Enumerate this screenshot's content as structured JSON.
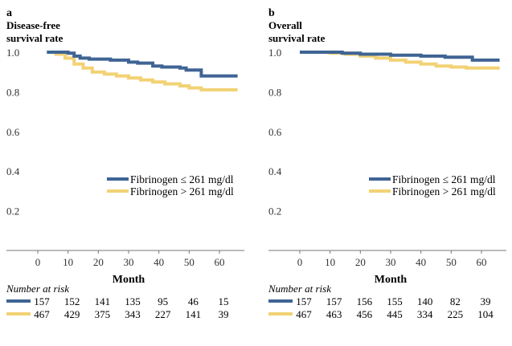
{
  "chart_data": [
    {
      "type": "line",
      "panel_letter": "a",
      "ylabel_line1": "Disease-free",
      "ylabel_line2": "survival rate",
      "xlabel": "Month",
      "xlim": [
        -12,
        68
      ],
      "ylim": [
        0,
        1.0
      ],
      "xticks": [
        "0",
        "10",
        "20",
        "30",
        "40",
        "50",
        "60"
      ],
      "xtick_values": [
        0,
        10,
        20,
        30,
        40,
        50,
        60
      ],
      "yticks": [
        "1.0",
        "0.8",
        "0.6",
        "0.4",
        "0.2"
      ],
      "ytick_values": [
        1.0,
        0.8,
        0.6,
        0.4,
        0.2
      ],
      "grid": false,
      "legend_position": "right",
      "series": [
        {
          "name": "Fibrinogen ≤ 261 mg/dl",
          "color": "#3f6494",
          "points": [
            [
              3,
              1.0
            ],
            [
              10,
              0.995
            ],
            [
              12,
              0.98
            ],
            [
              14,
              0.97
            ],
            [
              17,
              0.965
            ],
            [
              24,
              0.96
            ],
            [
              30,
              0.95
            ],
            [
              33,
              0.945
            ],
            [
              38,
              0.93
            ],
            [
              41,
              0.925
            ],
            [
              47,
              0.92
            ],
            [
              49,
              0.91
            ],
            [
              54,
              0.88
            ],
            [
              60,
              0.88
            ],
            [
              66,
              0.88
            ]
          ]
        },
        {
          "name": "Fibrinogen > 261 mg/dl",
          "color": "#f2d275",
          "points": [
            [
              3,
              1.0
            ],
            [
              6,
              0.99
            ],
            [
              9,
              0.97
            ],
            [
              12,
              0.94
            ],
            [
              15,
              0.92
            ],
            [
              18,
              0.9
            ],
            [
              22,
              0.89
            ],
            [
              26,
              0.88
            ],
            [
              30,
              0.87
            ],
            [
              34,
              0.86
            ],
            [
              38,
              0.85
            ],
            [
              42,
              0.84
            ],
            [
              47,
              0.83
            ],
            [
              50,
              0.82
            ],
            [
              54,
              0.81
            ],
            [
              60,
              0.81
            ],
            [
              66,
              0.81
            ]
          ]
        }
      ],
      "risk_table": {
        "title": "Number at risk",
        "times": [
          0,
          10,
          20,
          30,
          40,
          50,
          60
        ],
        "rows": [
          {
            "color": "#3f6494",
            "values": [
              "157",
              "152",
              "141",
              "135",
              "95",
              "46",
              "15"
            ]
          },
          {
            "color": "#f2d275",
            "values": [
              "467",
              "429",
              "375",
              "343",
              "227",
              "141",
              "39"
            ]
          }
        ]
      }
    },
    {
      "type": "line",
      "panel_letter": "b",
      "ylabel_line1": "Overall",
      "ylabel_line2": "survival rate",
      "xlabel": "Month",
      "xlim": [
        -12,
        68
      ],
      "ylim": [
        0,
        1.0
      ],
      "xticks": [
        "0",
        "10",
        "20",
        "30",
        "40",
        "50",
        "60"
      ],
      "xtick_values": [
        0,
        10,
        20,
        30,
        40,
        50,
        60
      ],
      "yticks": [
        "1.0",
        "0.8",
        "0.6",
        "0.4",
        "0.2"
      ],
      "ytick_values": [
        1.0,
        0.8,
        0.6,
        0.4,
        0.2
      ],
      "grid": false,
      "legend_position": "right",
      "series": [
        {
          "name": "Fibrinogen ≤ 261 mg/dl",
          "color": "#3f6494",
          "points": [
            [
              0,
              1.0
            ],
            [
              14,
              0.995
            ],
            [
              20,
              0.99
            ],
            [
              30,
              0.985
            ],
            [
              40,
              0.98
            ],
            [
              48,
              0.975
            ],
            [
              57,
              0.96
            ],
            [
              66,
              0.96
            ]
          ]
        },
        {
          "name": "Fibrinogen > 261 mg/dl",
          "color": "#f2d275",
          "points": [
            [
              0,
              1.0
            ],
            [
              10,
              0.995
            ],
            [
              15,
              0.99
            ],
            [
              20,
              0.98
            ],
            [
              25,
              0.97
            ],
            [
              30,
              0.96
            ],
            [
              35,
              0.95
            ],
            [
              40,
              0.94
            ],
            [
              45,
              0.93
            ],
            [
              50,
              0.925
            ],
            [
              55,
              0.92
            ],
            [
              60,
              0.92
            ],
            [
              66,
              0.92
            ]
          ]
        }
      ],
      "risk_table": {
        "title": "Number at risk",
        "times": [
          0,
          10,
          20,
          30,
          40,
          50,
          60
        ],
        "rows": [
          {
            "color": "#3f6494",
            "values": [
              "157",
              "157",
              "156",
              "155",
              "140",
              "82",
              "39"
            ]
          },
          {
            "color": "#f2d275",
            "values": [
              "467",
              "463",
              "456",
              "445",
              "334",
              "225",
              "104"
            ]
          }
        ]
      }
    }
  ]
}
